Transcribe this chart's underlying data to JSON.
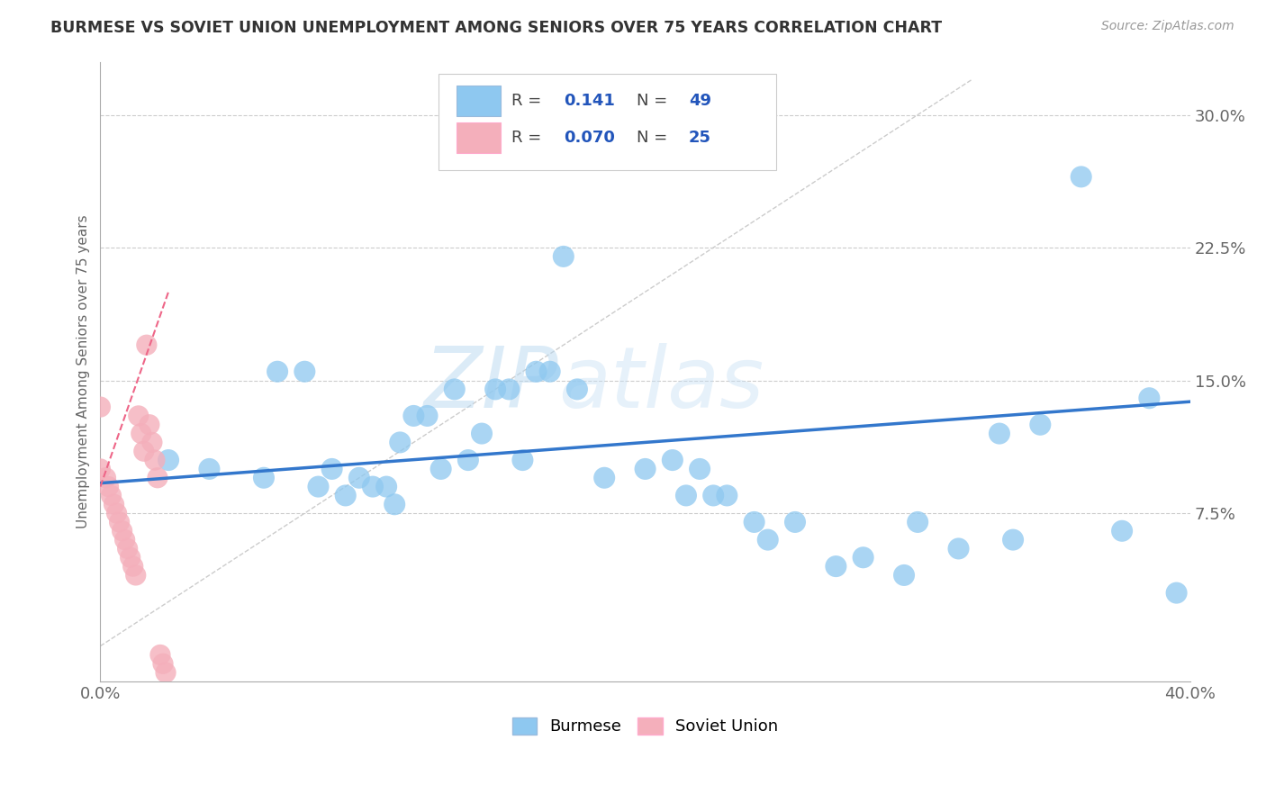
{
  "title": "BURMESE VS SOVIET UNION UNEMPLOYMENT AMONG SENIORS OVER 75 YEARS CORRELATION CHART",
  "source": "Source: ZipAtlas.com",
  "ylabel": "Unemployment Among Seniors over 75 years",
  "xlim": [
    0.0,
    0.4
  ],
  "ylim": [
    -0.02,
    0.33
  ],
  "xticks": [
    0.0,
    0.05,
    0.1,
    0.15,
    0.2,
    0.25,
    0.3,
    0.35,
    0.4
  ],
  "xticklabels": [
    "0.0%",
    "",
    "",
    "",
    "",
    "",
    "",
    "",
    "40.0%"
  ],
  "ytick_positions": [
    0.075,
    0.15,
    0.225,
    0.3
  ],
  "ytick_labels": [
    "7.5%",
    "15.0%",
    "22.5%",
    "30.0%"
  ],
  "background_color": "#ffffff",
  "grid_color": "#cccccc",
  "burmese_color": "#8EC8F0",
  "soviet_color": "#F4AFBB",
  "burmese_R": "0.141",
  "burmese_N": "49",
  "soviet_R": "0.070",
  "soviet_N": "25",
  "regression_line_color": "#3377CC",
  "soviet_regression_color": "#EE6688",
  "diagonal_color": "#CCCCCC",
  "watermark": "ZIPatlas",
  "burmese_x": [
    0.025,
    0.04,
    0.06,
    0.065,
    0.075,
    0.08,
    0.085,
    0.09,
    0.095,
    0.1,
    0.105,
    0.108,
    0.11,
    0.115,
    0.12,
    0.125,
    0.13,
    0.135,
    0.14,
    0.145,
    0.15,
    0.155,
    0.16,
    0.165,
    0.17,
    0.175,
    0.185,
    0.19,
    0.2,
    0.21,
    0.215,
    0.22,
    0.225,
    0.23,
    0.24,
    0.245,
    0.255,
    0.27,
    0.28,
    0.295,
    0.3,
    0.315,
    0.33,
    0.335,
    0.345,
    0.36,
    0.375,
    0.385,
    0.395
  ],
  "burmese_y": [
    0.105,
    0.1,
    0.095,
    0.155,
    0.155,
    0.09,
    0.1,
    0.085,
    0.095,
    0.09,
    0.09,
    0.08,
    0.115,
    0.13,
    0.13,
    0.1,
    0.145,
    0.105,
    0.12,
    0.145,
    0.145,
    0.105,
    0.155,
    0.155,
    0.22,
    0.145,
    0.095,
    0.28,
    0.1,
    0.105,
    0.085,
    0.1,
    0.085,
    0.085,
    0.07,
    0.06,
    0.07,
    0.045,
    0.05,
    0.04,
    0.07,
    0.055,
    0.12,
    0.06,
    0.125,
    0.265,
    0.065,
    0.14,
    0.03
  ],
  "soviet_x": [
    0.0,
    0.0,
    0.002,
    0.003,
    0.004,
    0.005,
    0.006,
    0.007,
    0.008,
    0.009,
    0.01,
    0.011,
    0.012,
    0.013,
    0.014,
    0.015,
    0.016,
    0.017,
    0.018,
    0.019,
    0.02,
    0.021,
    0.022,
    0.023,
    0.024
  ],
  "soviet_y": [
    0.135,
    0.1,
    0.095,
    0.09,
    0.085,
    0.08,
    0.075,
    0.07,
    0.065,
    0.06,
    0.055,
    0.05,
    0.045,
    0.04,
    0.13,
    0.12,
    0.11,
    0.17,
    0.125,
    0.115,
    0.105,
    0.095,
    -0.005,
    -0.01,
    -0.015
  ]
}
